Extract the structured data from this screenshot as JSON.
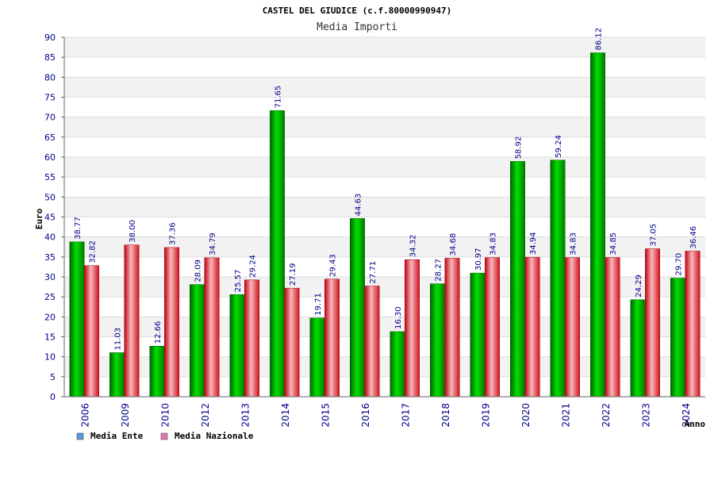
{
  "chart_data": {
    "type": "bar",
    "title": "CASTEL DEL GIUDICE (c.f.80000990947)",
    "subtitle": "Media Importi",
    "ylabel": "Euro",
    "xlabel": "Anno",
    "ylim": [
      0,
      90
    ],
    "yticks": [
      0,
      5,
      10,
      15,
      20,
      25,
      30,
      35,
      40,
      45,
      50,
      55,
      60,
      65,
      70,
      75,
      80,
      85,
      90
    ],
    "grid": true,
    "legend_position": "bottom-left",
    "categories": [
      "2006",
      "2009",
      "2010",
      "2012",
      "2013",
      "2014",
      "2015",
      "2016",
      "2017",
      "2018",
      "2019",
      "2020",
      "2021",
      "2022",
      "2023",
      "2024"
    ],
    "series": [
      {
        "name": "Media Ente",
        "color": "#00c000",
        "legend_color": "#5b9bd5",
        "values": [
          38.77,
          11.03,
          12.66,
          28.09,
          25.57,
          71.65,
          19.71,
          44.63,
          16.3,
          28.27,
          30.97,
          58.92,
          59.24,
          86.12,
          24.29,
          29.7
        ],
        "labels": [
          "38.77",
          "11.03",
          "12.66",
          "28.09",
          "25.57",
          "71.65",
          "19.71",
          "44.63",
          "16.30",
          "28.27",
          "30.97",
          "58.92",
          "59.24",
          "86.12",
          "24.29",
          "29.70"
        ]
      },
      {
        "name": "Media Nazionale",
        "color": "#e8202a",
        "legend_color": "#e377a7",
        "values": [
          32.82,
          38.0,
          37.36,
          34.79,
          29.24,
          27.19,
          29.43,
          27.71,
          34.32,
          34.68,
          34.83,
          34.94,
          34.83,
          34.85,
          37.05,
          36.46
        ],
        "labels": [
          "32.82",
          "38.00",
          "37.36",
          "34.79",
          "29.24",
          "27.19",
          "29.43",
          "27.71",
          "34.32",
          "34.68",
          "34.83",
          "34.94",
          "34.83",
          "34.85",
          "37.05",
          "36.46"
        ]
      }
    ]
  }
}
